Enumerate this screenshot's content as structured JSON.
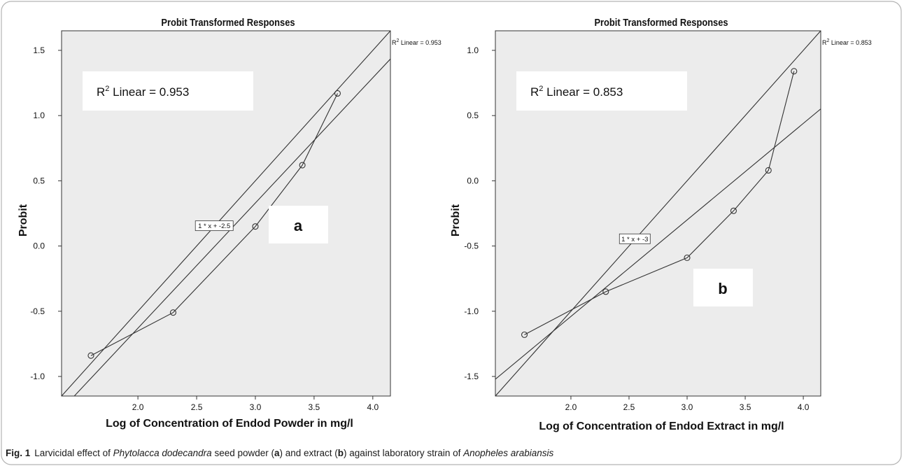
{
  "chart_data": [
    {
      "type": "scatter",
      "panel_label": "a",
      "title": "Probit Transformed Responses",
      "xlabel": "Log of Concentration of Endod Powder in mg/l",
      "ylabel": "Probit",
      "xlim": [
        1.35,
        4.15
      ],
      "ylim": [
        -1.15,
        1.65
      ],
      "xticks": [
        "2.0",
        "2.5",
        "3.0",
        "3.5",
        "4.0"
      ],
      "yticks": [
        "-1.0",
        "-0.5",
        "0.0",
        "0.5",
        "1.0",
        "1.5"
      ],
      "points": [
        {
          "x": 1.6,
          "y": -0.84
        },
        {
          "x": 2.3,
          "y": -0.51
        },
        {
          "x": 3.0,
          "y": 0.15
        },
        {
          "x": 3.4,
          "y": 0.62
        },
        {
          "x": 3.7,
          "y": 1.17
        }
      ],
      "reference_line": {
        "label": "1 * x + -2.5",
        "slope": 1,
        "intercept": -2.5
      },
      "fit_line": {
        "label": "R² Linear = 0.953",
        "slope": 0.96,
        "intercept": -2.55
      },
      "r2_box_text": "0.953",
      "r2_line_text": "0.953",
      "grid": false
    },
    {
      "type": "scatter",
      "panel_label": "b",
      "title": "Probit Transformed Responses",
      "xlabel": "Log of Concentration of Endod Extract in mg/l",
      "ylabel": "Probit",
      "xlim": [
        1.35,
        4.15
      ],
      "ylim": [
        -1.65,
        1.15
      ],
      "xticks": [
        "2.0",
        "2.5",
        "3.0",
        "3.5",
        "4.0"
      ],
      "yticks": [
        "-1.5",
        "-1.0",
        "-0.5",
        "0.0",
        "0.5",
        "1.0"
      ],
      "points": [
        {
          "x": 1.6,
          "y": -1.18
        },
        {
          "x": 2.3,
          "y": -0.85
        },
        {
          "x": 3.0,
          "y": -0.59
        },
        {
          "x": 3.4,
          "y": -0.23
        },
        {
          "x": 3.7,
          "y": 0.08
        },
        {
          "x": 3.92,
          "y": 0.84
        }
      ],
      "reference_line": {
        "label": "1 * x + -3",
        "slope": 1,
        "intercept": -3
      },
      "fit_line": {
        "label": "R² Linear = 0.853",
        "slope": 0.74,
        "intercept": -2.52
      },
      "r2_box_text": "0.853",
      "r2_line_text": "0.853",
      "grid": false
    }
  ],
  "caption": {
    "fig_label": "Fig. 1",
    "text_1": "Larvicidal effect of ",
    "species_1": "Phytolacca dodecandra",
    "text_2": " seed powder (",
    "label_a": "a",
    "text_3": ") and extract (",
    "label_b": "b",
    "text_4": ") against laboratory strain of ",
    "species_2": "Anopheles arabiansis"
  },
  "colors": {
    "plot_background": "#ececec",
    "line": "#333333",
    "text": "#111111",
    "frame_border": "#b3b3b3"
  }
}
